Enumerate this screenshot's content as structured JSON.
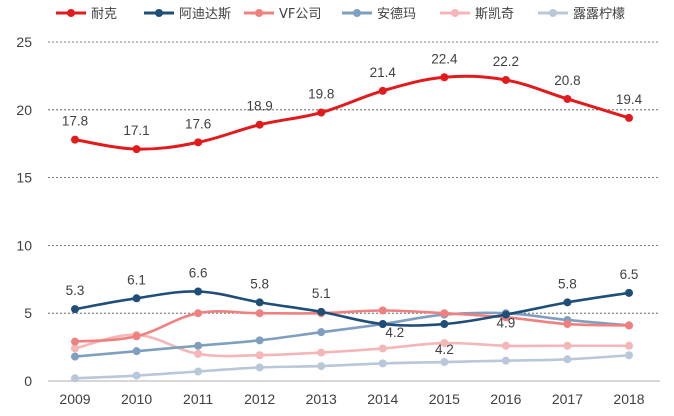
{
  "chart_data": {
    "type": "line",
    "categories": [
      "2009",
      "2010",
      "2011",
      "2012",
      "2013",
      "2014",
      "2015",
      "2016",
      "2017",
      "2018"
    ],
    "ylim": [
      0,
      25
    ],
    "yticks": [
      0,
      5,
      10,
      15,
      20,
      25
    ],
    "ytick_labels": [
      "0",
      "5",
      "10",
      "15",
      "20",
      "25"
    ],
    "grid": "horizontal dashed",
    "legend_position": "top",
    "series": [
      {
        "name": "耐克",
        "color": "#e31a1c",
        "values": [
          17.8,
          17.1,
          17.6,
          18.9,
          19.8,
          21.4,
          22.4,
          22.2,
          20.8,
          19.4
        ],
        "labels": [
          "17.8",
          "17.1",
          "17.6",
          "18.9",
          "19.8",
          "21.4",
          "22.4",
          "22.2",
          "20.8",
          "19.4"
        ]
      },
      {
        "name": "阿迪达斯",
        "color": "#1f4e79",
        "values": [
          5.3,
          6.1,
          6.6,
          5.8,
          5.1,
          4.2,
          4.2,
          4.9,
          5.8,
          6.5
        ],
        "labels": [
          "5.3",
          "6.1",
          "6.6",
          "5.8",
          "5.1",
          "4.2",
          "4.2",
          "4.9",
          "5.8",
          "6.5"
        ]
      },
      {
        "name": "VF公司",
        "color": "#f08080",
        "values": [
          2.9,
          3.3,
          5.0,
          5.0,
          5.0,
          5.2,
          5.0,
          4.7,
          4.2,
          4.1
        ],
        "labels": []
      },
      {
        "name": "安德玛",
        "color": "#7f9fbf",
        "values": [
          1.8,
          2.2,
          2.6,
          3.0,
          3.6,
          4.2,
          4.9,
          5.0,
          4.5,
          4.1
        ],
        "labels": []
      },
      {
        "name": "斯凯奇",
        "color": "#f4b6b6",
        "values": [
          2.4,
          3.4,
          2.0,
          1.9,
          2.1,
          2.4,
          2.8,
          2.6,
          2.6,
          2.6
        ],
        "labels": []
      },
      {
        "name": "露露柠檬",
        "color": "#b8c8d8",
        "values": [
          0.2,
          0.4,
          0.7,
          1.0,
          1.1,
          1.3,
          1.4,
          1.5,
          1.6,
          1.9
        ],
        "labels": []
      }
    ]
  }
}
